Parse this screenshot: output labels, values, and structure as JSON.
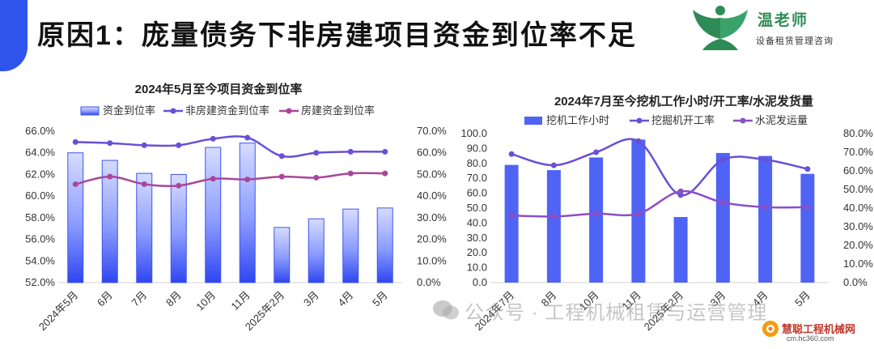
{
  "header": {
    "title": "原因1：庞量债务下非房建项目资金到位率不足"
  },
  "logo": {
    "name": "温老师",
    "subtitle": "设备租赁管理咨询",
    "icon": "person-leaves-logo"
  },
  "watermark": {
    "text": "公众号 · 工程机械租赁与运营管理",
    "icon": "wechat-icon"
  },
  "brand": {
    "name": "慧聪工程机械网",
    "url": "cm.hc360.com"
  },
  "colors": {
    "accent": "#2f54eb",
    "bar": "#4f63f5",
    "purple_line": "#6a4fd8",
    "magenta_line": "#a8479a",
    "mid_purple_line": "#8a4fc8"
  },
  "chart_data": [
    {
      "type": "bar",
      "title": "2024年5月至今项目资金到位率",
      "categories": [
        "2024年5月",
        "6月",
        "7月",
        "8月",
        "10月",
        "11月",
        "2025年2月",
        "3月",
        "4月",
        "5月"
      ],
      "series": [
        {
          "name": "资金到位率",
          "type": "bar",
          "axis": "left",
          "values": [
            0.64,
            0.633,
            0.621,
            0.62,
            0.645,
            0.649,
            0.571,
            0.579,
            0.588,
            0.589
          ]
        },
        {
          "name": "非房建资金到位率",
          "type": "line",
          "axis": "right",
          "values": [
            0.65,
            0.645,
            0.635,
            0.635,
            0.665,
            0.67,
            0.585,
            0.6,
            0.605,
            0.605
          ]
        },
        {
          "name": "房建资金到位率",
          "type": "line",
          "axis": "right",
          "values": [
            0.455,
            0.49,
            0.455,
            0.448,
            0.48,
            0.477,
            0.49,
            0.485,
            0.505,
            0.505
          ]
        }
      ],
      "y_left": {
        "range": [
          0.52,
          0.66
        ],
        "ticks": [
          "52.0%",
          "54.0%",
          "56.0%",
          "58.0%",
          "60.0%",
          "62.0%",
          "64.0%",
          "66.0%"
        ]
      },
      "y_right": {
        "range": [
          0,
          0.7
        ],
        "ticks": [
          "0.0%",
          "10.0%",
          "20.0%",
          "30.0%",
          "40.0%",
          "50.0%",
          "60.0%",
          "70.0%"
        ]
      },
      "legend": "top",
      "grid": false
    },
    {
      "type": "bar",
      "title": "2024年7月至今挖机工作小时/开工率/水泥发货量",
      "categories": [
        "2024年7月",
        "8月",
        "10月",
        "11月",
        "2025年2月",
        "3月",
        "4月",
        "5月"
      ],
      "series": [
        {
          "name": "挖机工作小时",
          "type": "bar",
          "axis": "left",
          "values": [
            79,
            75.5,
            84,
            96,
            44,
            87,
            85,
            73
          ]
        },
        {
          "name": "挖掘机开工率",
          "type": "line",
          "axis": "right",
          "values": [
            0.69,
            0.63,
            0.7,
            0.76,
            0.47,
            0.66,
            0.66,
            0.61
          ]
        },
        {
          "name": "水泥发运量",
          "type": "line",
          "axis": "right",
          "values": [
            0.36,
            0.355,
            0.37,
            0.37,
            0.49,
            0.43,
            0.405,
            0.405
          ]
        }
      ],
      "y_left": {
        "range": [
          0,
          100
        ],
        "ticks": [
          "0.0",
          "10.0",
          "20.0",
          "30.0",
          "40.0",
          "50.0",
          "60.0",
          "70.0",
          "80.0",
          "90.0",
          "100.0"
        ]
      },
      "y_right": {
        "range": [
          0,
          0.8
        ],
        "ticks": [
          "0.0%",
          "10.0%",
          "20.0%",
          "30.0%",
          "40.0%",
          "50.0%",
          "60.0%",
          "70.0%",
          "80.0%"
        ]
      },
      "legend": "top",
      "grid": false
    }
  ]
}
